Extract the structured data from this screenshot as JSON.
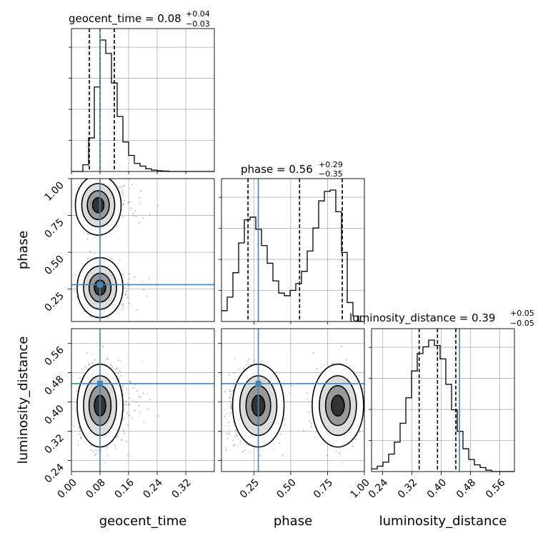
{
  "chart_data": {
    "type": "corner",
    "parameters": [
      "geocent_time",
      "phase",
      "luminosity_distance"
    ],
    "truths": {
      "geocent_time": 0.08,
      "phase": 0.28,
      "luminosity_distance": 0.45
    },
    "truth_color": "#4682b4",
    "titles": [
      {
        "param": "geocent_time",
        "text": "geocent_time = 0.08",
        "plus": "+0.04",
        "minus": "−0.03"
      },
      {
        "param": "phase",
        "text": "phase = 0.56",
        "plus": "+0.29",
        "minus": "−0.35"
      },
      {
        "param": "luminosity_distance",
        "text": "luminosity_distance = 0.39",
        "plus": "+0.05",
        "minus": "−0.05"
      }
    ],
    "ranges": {
      "geocent_time": [
        0.0,
        0.4
      ],
      "phase": [
        0.03,
        1.0
      ],
      "luminosity_distance": [
        0.21,
        0.6
      ]
    },
    "ticks": {
      "geocent_time": [
        "0.00",
        "0.08",
        "0.16",
        "0.24",
        "0.32"
      ],
      "phase": [
        "0.25",
        "0.50",
        "0.75",
        "1.00"
      ],
      "luminosity_distance": [
        "0.24",
        "0.32",
        "0.40",
        "0.48",
        "0.56"
      ]
    },
    "quantile_lines": {
      "geocent_time": [
        0.05,
        0.08,
        0.12
      ],
      "phase": [
        0.21,
        0.56,
        0.85
      ],
      "luminosity_distance": [
        0.34,
        0.39,
        0.44
      ]
    },
    "histograms": {
      "geocent_time": {
        "edges": [
          0.0,
          0.016,
          0.032,
          0.048,
          0.064,
          0.08,
          0.096,
          0.112,
          0.128,
          0.144,
          0.16,
          0.176,
          0.192,
          0.208,
          0.224,
          0.24,
          0.256,
          0.272,
          0.288,
          0.304,
          0.32,
          0.336,
          0.352,
          0.368,
          0.384,
          0.4
        ],
        "counts": [
          0,
          0,
          0.05,
          0.25,
          0.63,
          0.98,
          0.88,
          0.66,
          0.41,
          0.22,
          0.12,
          0.06,
          0.04,
          0.02,
          0.01,
          0.005,
          0.003,
          0,
          0,
          0,
          0,
          0,
          0,
          0,
          0
        ]
      },
      "phase": {
        "edges": [
          0.03,
          0.0688,
          0.1076,
          0.1464,
          0.1852,
          0.224,
          0.2628,
          0.3016,
          0.3404,
          0.3792,
          0.418,
          0.4568,
          0.4956,
          0.5344,
          0.5732,
          0.612,
          0.6508,
          0.6896,
          0.7284,
          0.7672,
          0.806,
          0.8448,
          0.8836,
          0.9224,
          0.9612,
          1.0
        ],
        "counts": [
          0.08,
          0.18,
          0.36,
          0.58,
          0.75,
          0.77,
          0.68,
          0.56,
          0.43,
          0.3,
          0.21,
          0.19,
          0.23,
          0.28,
          0.37,
          0.52,
          0.69,
          0.89,
          0.96,
          0.97,
          0.81,
          0.51,
          0.14,
          0.04,
          0.0
        ],
        "extra_bars": []
      },
      "luminosity_distance": {
        "edges": [
          0.21,
          0.2256,
          0.2412,
          0.2568,
          0.2724,
          0.288,
          0.3036,
          0.3192,
          0.3348,
          0.3504,
          0.366,
          0.3816,
          0.3972,
          0.4128,
          0.4284,
          0.444,
          0.4596,
          0.4752,
          0.4908,
          0.5064,
          0.522,
          0.5376,
          0.5532,
          0.5688,
          0.5844,
          0.6
        ],
        "counts": [
          0.02,
          0.04,
          0.07,
          0.13,
          0.22,
          0.36,
          0.55,
          0.75,
          0.88,
          0.93,
          0.98,
          0.94,
          0.84,
          0.65,
          0.46,
          0.3,
          0.17,
          0.09,
          0.05,
          0.03,
          0.01,
          0.0,
          0.0,
          0.0,
          0.0
        ]
      }
    },
    "grid": true
  }
}
